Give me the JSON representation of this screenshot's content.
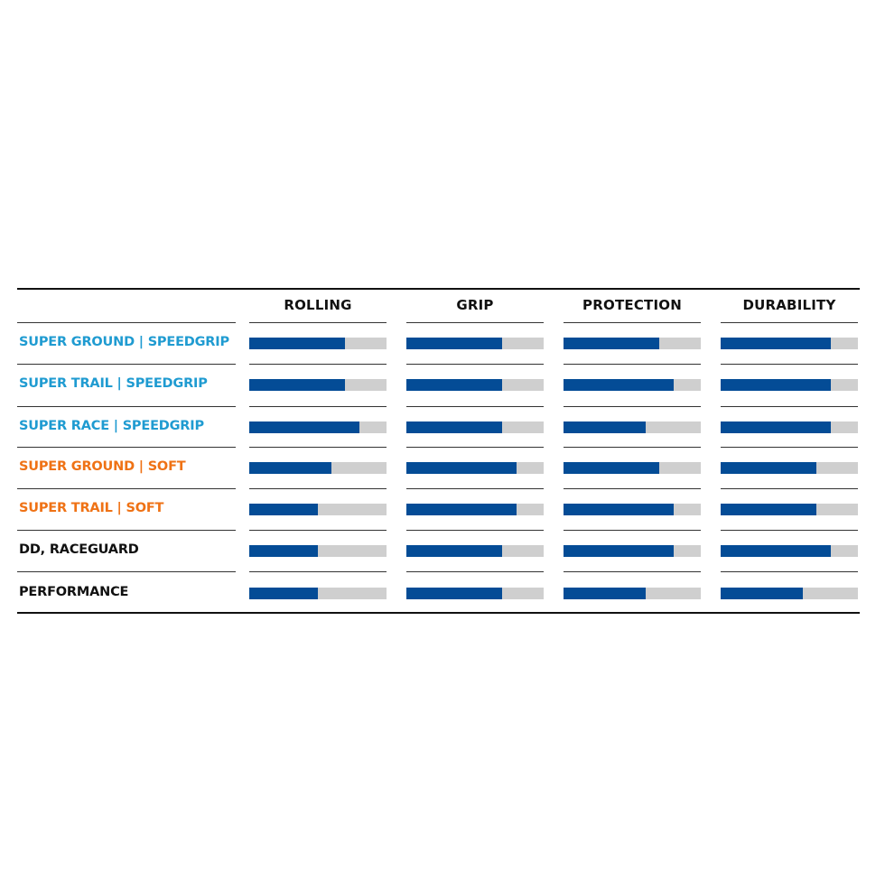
{
  "colors": {
    "fill": "#044c96",
    "track": "#cfcfcf",
    "speedgrip": "#1f9bd1",
    "soft": "#ef7215",
    "standard": "#111111"
  },
  "chart_data": {
    "type": "bar",
    "orientation": "horizontal",
    "xlim": [
      0,
      1
    ],
    "columns": [
      "ROLLING",
      "GRIP",
      "PROTECTION",
      "DURABILITY"
    ],
    "rows": [
      {
        "label": "SUPER GROUND | SPEEDGRIP",
        "group": "speedgrip",
        "values": [
          0.7,
          0.7,
          0.7,
          0.8
        ]
      },
      {
        "label": "SUPER TRAIL | SPEEDGRIP",
        "group": "speedgrip",
        "values": [
          0.7,
          0.7,
          0.8,
          0.8
        ]
      },
      {
        "label": "SUPER RACE | SPEEDGRIP",
        "group": "speedgrip",
        "values": [
          0.8,
          0.7,
          0.6,
          0.8
        ]
      },
      {
        "label": "SUPER GROUND | SOFT",
        "group": "soft",
        "values": [
          0.6,
          0.8,
          0.7,
          0.7
        ]
      },
      {
        "label": "SUPER TRAIL | SOFT",
        "group": "soft",
        "values": [
          0.5,
          0.8,
          0.8,
          0.7
        ]
      },
      {
        "label": "DD, RACEGUARD",
        "group": "standard",
        "values": [
          0.5,
          0.7,
          0.8,
          0.8
        ]
      },
      {
        "label": "PERFORMANCE",
        "group": "standard",
        "values": [
          0.5,
          0.7,
          0.6,
          0.6
        ]
      }
    ]
  }
}
